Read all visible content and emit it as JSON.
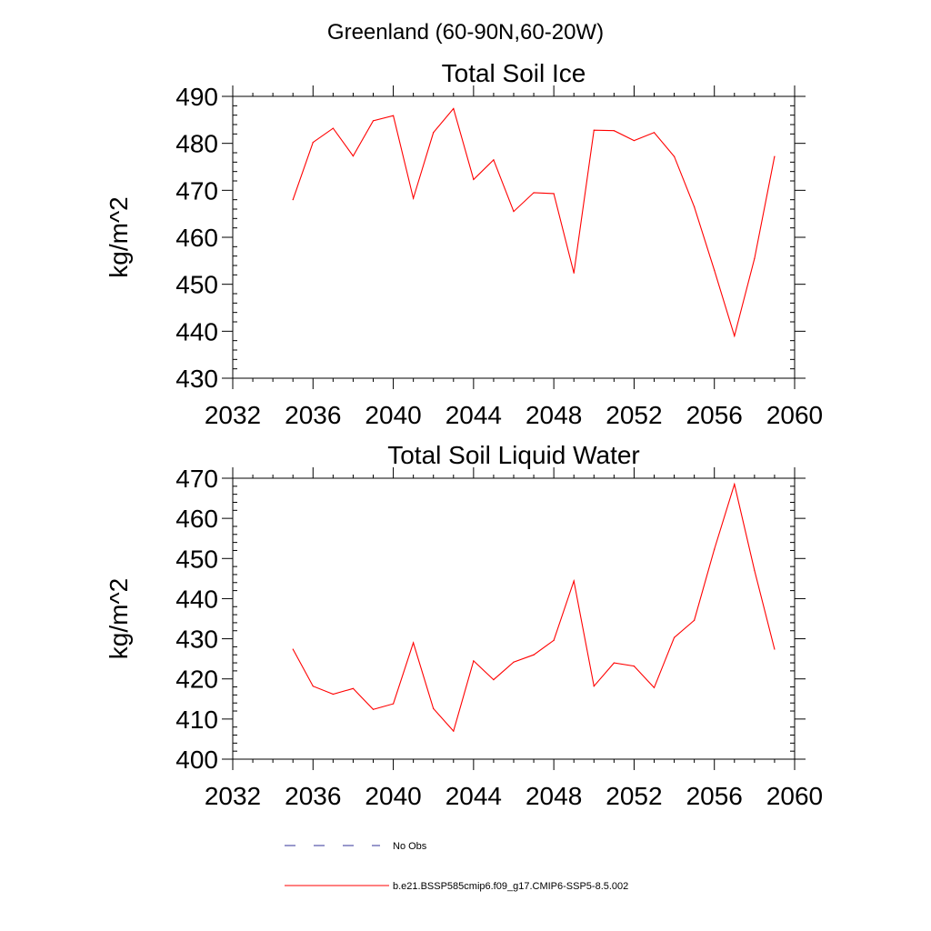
{
  "figure": {
    "suptitle": "Greenland (60-90N,60-20W)"
  },
  "chart_data": [
    {
      "type": "line",
      "title": "Total Soil Ice",
      "xlabel": "",
      "ylabel": "kg/m^2",
      "xlim": [
        2032,
        2060
      ],
      "ylim": [
        430,
        490
      ],
      "xticks": [
        2032,
        2036,
        2040,
        2044,
        2048,
        2052,
        2056,
        2060
      ],
      "yticks": [
        430,
        440,
        450,
        460,
        470,
        480,
        490
      ],
      "grid": false,
      "series": [
        {
          "name": "b.e21.BSSP585cmip6.f09_g17.CMIP6-SSP5-8.5.002",
          "color": "#ff0000",
          "x": [
            2035,
            2036,
            2037,
            2038,
            2039,
            2040,
            2041,
            2042,
            2043,
            2044,
            2045,
            2046,
            2047,
            2048,
            2049,
            2050,
            2051,
            2052,
            2053,
            2054,
            2055,
            2056,
            2057,
            2058,
            2059
          ],
          "y": [
            468,
            480.2,
            483.2,
            477.3,
            484.8,
            485.9,
            468.3,
            482.3,
            487.4,
            472.3,
            476.5,
            465.5,
            469.5,
            469.3,
            452.4,
            482.8,
            482.7,
            480.6,
            482.3,
            477.2,
            466.5,
            453,
            439,
            455.5,
            477.2
          ]
        }
      ]
    },
    {
      "type": "line",
      "title": "Total Soil Liquid Water",
      "xlabel": "",
      "ylabel": "kg/m^2",
      "xlim": [
        2032,
        2060
      ],
      "ylim": [
        400,
        470
      ],
      "xticks": [
        2032,
        2036,
        2040,
        2044,
        2048,
        2052,
        2056,
        2060
      ],
      "yticks": [
        400,
        410,
        420,
        430,
        440,
        450,
        460,
        470
      ],
      "grid": false,
      "series": [
        {
          "name": "b.e21.BSSP585cmip6.f09_g17.CMIP6-SSP5-8.5.002",
          "color": "#ff0000",
          "x": [
            2035,
            2036,
            2037,
            2038,
            2039,
            2040,
            2041,
            2042,
            2043,
            2044,
            2045,
            2046,
            2047,
            2048,
            2049,
            2050,
            2051,
            2052,
            2053,
            2054,
            2055,
            2056,
            2057,
            2058,
            2059
          ],
          "y": [
            427.4,
            418.2,
            416.2,
            417.6,
            412.4,
            413.8,
            429,
            412.6,
            407,
            424.5,
            419.8,
            424.2,
            426,
            429.6,
            444.4,
            418.2,
            424,
            423.2,
            417.8,
            430.3,
            434.6,
            452.3,
            468.5,
            447,
            427.4
          ]
        }
      ]
    }
  ],
  "legend": {
    "items": [
      {
        "label": "No Obs",
        "color": "#333399",
        "style": "dashed"
      },
      {
        "label": "b.e21.BSSP585cmip6.f09_g17.CMIP6-SSP5-8.5.002",
        "color": "#ff0000",
        "style": "solid"
      }
    ]
  }
}
